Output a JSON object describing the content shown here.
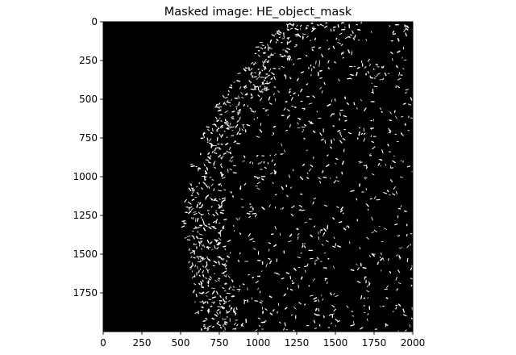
{
  "chart_data": {
    "type": "heatmap",
    "title": "Masked image: HE_object_mask",
    "xlabel": "",
    "ylabel": "",
    "xlim": [
      0,
      2000
    ],
    "ylim": [
      2000,
      0
    ],
    "y_axis_inverted": true,
    "grid": false,
    "colormap": "gray (binary mask: black background, white objects)",
    "x_ticks": [
      "0",
      "250",
      "500",
      "750",
      "1000",
      "1250",
      "1500",
      "1750",
      "2000"
    ],
    "y_ticks": [
      "0",
      "250",
      "500",
      "750",
      "1000",
      "1250",
      "1500",
      "1750"
    ],
    "x_tick_values": [
      0,
      250,
      500,
      750,
      1000,
      1250,
      1500,
      1750,
      2000
    ],
    "y_tick_values": [
      0,
      250,
      500,
      750,
      1000,
      1250,
      1500,
      1750
    ],
    "tissue_boundary": [
      [
        1200,
        0
      ],
      [
        1050,
        100
      ],
      [
        900,
        300
      ],
      [
        750,
        500
      ],
      [
        650,
        700
      ],
      [
        580,
        900
      ],
      [
        540,
        1100
      ],
      [
        520,
        1300
      ],
      [
        540,
        1500
      ],
      [
        580,
        1700
      ],
      [
        620,
        2000
      ]
    ],
    "colors": {
      "background": "#000000",
      "objects": "#ffffff"
    }
  }
}
